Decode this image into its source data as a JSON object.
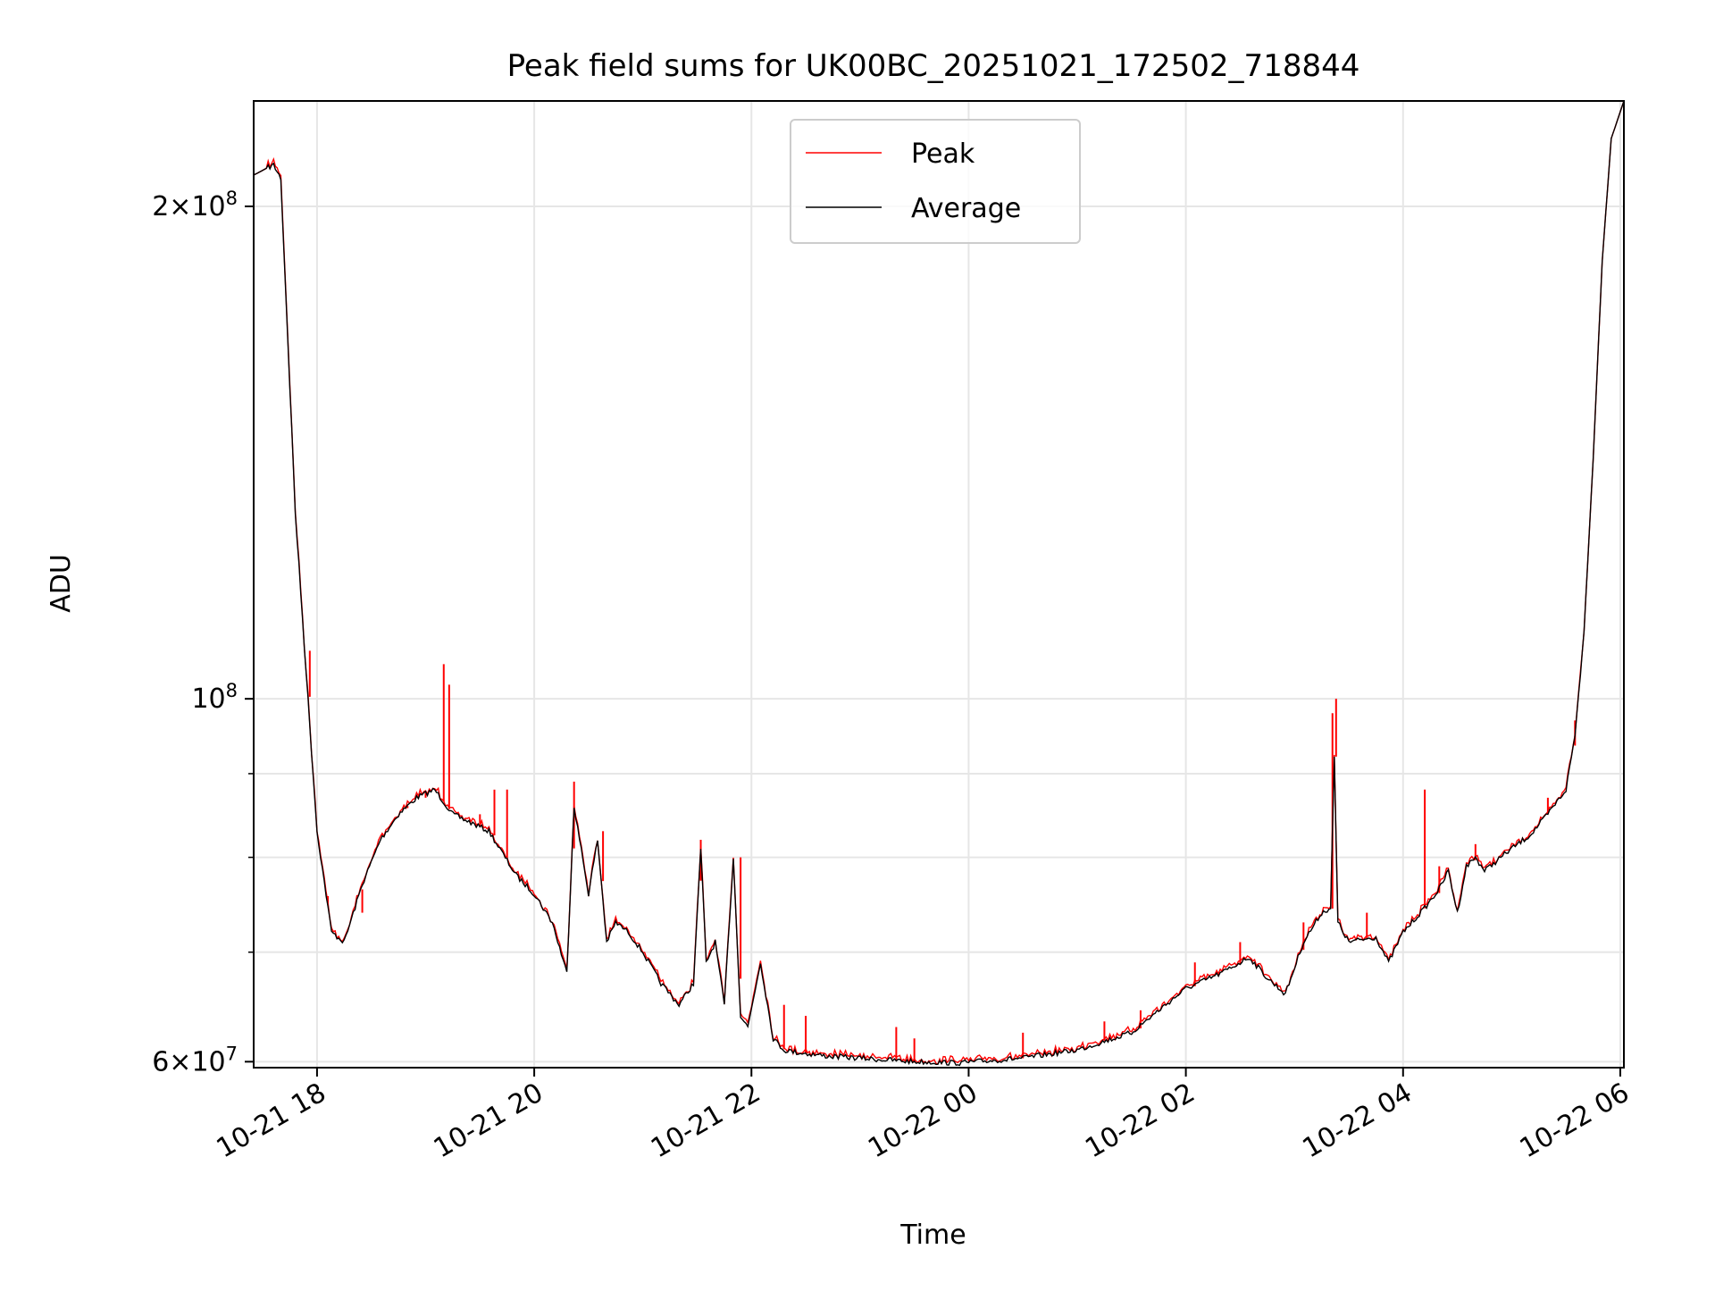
{
  "chart_data": {
    "type": "line",
    "title": "Peak field sums for UK00BC_20251021_172502_718844",
    "xlabel": "Time",
    "ylabel": "ADU",
    "yscale": "log",
    "xlim": [
      "2025-10-21 17:25",
      "2025-10-22 06:02"
    ],
    "ylim": [
      59500000,
      232000000
    ],
    "x_ticks": [
      "10-21 18",
      "10-21 20",
      "10-21 22",
      "10-22 00",
      "10-22 02",
      "10-22 04",
      "10-22 06"
    ],
    "x_tick_values": [
      "2025-10-21 18:00",
      "2025-10-21 20:00",
      "2025-10-21 22:00",
      "2025-10-22 00:00",
      "2025-10-22 02:00",
      "2025-10-22 04:00",
      "2025-10-22 06:00"
    ],
    "y_ticks": [
      {
        "value": 60000000,
        "base": "6×10",
        "exp": "7"
      },
      {
        "value": 100000000,
        "base": "10",
        "exp": "8"
      },
      {
        "value": 200000000,
        "base": "2×10",
        "exp": "8"
      }
    ],
    "y_minor_ticks": [
      70000000,
      80000000,
      90000000
    ],
    "grid": true,
    "legend": {
      "position": "top-center",
      "entries": [
        "Peak",
        "Average"
      ]
    },
    "series": [
      {
        "name": "Average",
        "color": "#000000",
        "x": [
          "2025-10-21 17:25",
          "2025-10-21 17:32",
          "2025-10-21 17:36",
          "2025-10-21 17:40",
          "2025-10-21 17:48",
          "2025-10-21 17:55",
          "2025-10-21 18:00",
          "2025-10-21 18:08",
          "2025-10-21 18:15",
          "2025-10-21 18:25",
          "2025-10-21 18:35",
          "2025-10-21 18:45",
          "2025-10-21 18:55",
          "2025-10-21 19:05",
          "2025-10-21 19:15",
          "2025-10-21 19:25",
          "2025-10-21 19:35",
          "2025-10-21 19:50",
          "2025-10-21 20:00",
          "2025-10-21 20:10",
          "2025-10-21 20:18",
          "2025-10-21 20:22",
          "2025-10-21 20:30",
          "2025-10-21 20:35",
          "2025-10-21 20:40",
          "2025-10-21 20:45",
          "2025-10-21 20:52",
          "2025-10-21 21:00",
          "2025-10-21 21:10",
          "2025-10-21 21:20",
          "2025-10-21 21:28",
          "2025-10-21 21:32",
          "2025-10-21 21:35",
          "2025-10-21 21:40",
          "2025-10-21 21:45",
          "2025-10-21 21:50",
          "2025-10-21 21:54",
          "2025-10-21 21:58",
          "2025-10-21 22:05",
          "2025-10-21 22:12",
          "2025-10-21 22:18",
          "2025-10-21 22:25",
          "2025-10-21 22:40",
          "2025-10-21 23:00",
          "2025-10-21 23:30",
          "2025-10-21 23:55",
          "2025-10-22 00:30",
          "2025-10-22 01:00",
          "2025-10-22 01:30",
          "2025-10-22 01:45",
          "2025-10-22 02:00",
          "2025-10-22 02:20",
          "2025-10-22 02:35",
          "2025-10-22 02:45",
          "2025-10-22 02:55",
          "2025-10-22 03:05",
          "2025-10-22 03:15",
          "2025-10-22 03:20",
          "2025-10-22 03:22",
          "2025-10-22 03:24",
          "2025-10-22 03:30",
          "2025-10-22 03:45",
          "2025-10-22 03:52",
          "2025-10-22 04:00",
          "2025-10-22 04:12",
          "2025-10-22 04:20",
          "2025-10-22 04:25",
          "2025-10-22 04:30",
          "2025-10-22 04:35",
          "2025-10-22 04:40",
          "2025-10-22 04:45",
          "2025-10-22 05:00",
          "2025-10-22 05:10",
          "2025-10-22 05:20",
          "2025-10-22 05:30",
          "2025-10-22 05:35",
          "2025-10-22 05:40",
          "2025-10-22 05:45",
          "2025-10-22 05:50",
          "2025-10-22 05:55",
          "2025-10-22 06:02"
        ],
        "values": [
          209000000,
          211000000,
          212000000,
          208000000,
          130000000,
          100000000,
          83000000,
          72000000,
          71000000,
          77000000,
          82000000,
          85000000,
          87000000,
          88000000,
          85000000,
          84000000,
          83000000,
          78000000,
          76000000,
          73000000,
          68000000,
          86000000,
          76000000,
          82000000,
          71000000,
          73000000,
          72000000,
          70000000,
          67000000,
          65000000,
          67000000,
          81000000,
          69000000,
          71000000,
          65000000,
          80000000,
          64000000,
          63000000,
          69000000,
          62000000,
          61000000,
          60800000,
          60500000,
          60300000,
          60000000,
          59900000,
          60300000,
          61000000,
          62500000,
          64500000,
          66500000,
          68000000,
          69500000,
          67500000,
          66000000,
          71000000,
          74000000,
          74500000,
          92000000,
          73000000,
          71000000,
          71500000,
          69000000,
          72000000,
          74500000,
          76500000,
          78500000,
          74000000,
          79000000,
          80000000,
          78500000,
          81000000,
          82500000,
          85000000,
          88000000,
          95000000,
          110000000,
          140000000,
          185000000,
          220000000,
          232000000
        ]
      },
      {
        "name": "Peak",
        "color": "#ff0000",
        "spikes": [
          {
            "x": "2025-10-21 17:56",
            "value": 107000000
          },
          {
            "x": "2025-10-21 18:06",
            "value": 75000000
          },
          {
            "x": "2025-10-21 18:25",
            "value": 74000000
          },
          {
            "x": "2025-10-21 18:50",
            "value": 86000000
          },
          {
            "x": "2025-10-21 19:00",
            "value": 87000000
          },
          {
            "x": "2025-10-21 19:10",
            "value": 105000000
          },
          {
            "x": "2025-10-21 19:13",
            "value": 102000000
          },
          {
            "x": "2025-10-21 19:30",
            "value": 85000000
          },
          {
            "x": "2025-10-21 19:38",
            "value": 88000000
          },
          {
            "x": "2025-10-21 19:45",
            "value": 88000000
          },
          {
            "x": "2025-10-21 20:22",
            "value": 89000000
          },
          {
            "x": "2025-10-21 20:38",
            "value": 83000000
          },
          {
            "x": "2025-10-21 21:32",
            "value": 82000000
          },
          {
            "x": "2025-10-21 21:54",
            "value": 80000000
          },
          {
            "x": "2025-10-21 22:18",
            "value": 65000000
          },
          {
            "x": "2025-10-21 22:30",
            "value": 64000000
          },
          {
            "x": "2025-10-21 23:20",
            "value": 63000000
          },
          {
            "x": "2025-10-21 23:30",
            "value": 62000000
          },
          {
            "x": "2025-10-22 00:30",
            "value": 62500000
          },
          {
            "x": "2025-10-22 01:15",
            "value": 63500000
          },
          {
            "x": "2025-10-22 01:35",
            "value": 64500000
          },
          {
            "x": "2025-10-22 02:05",
            "value": 69000000
          },
          {
            "x": "2025-10-22 02:30",
            "value": 71000000
          },
          {
            "x": "2025-10-22 03:05",
            "value": 73000000
          },
          {
            "x": "2025-10-22 03:21",
            "value": 98000000
          },
          {
            "x": "2025-10-22 03:23",
            "value": 100000000
          },
          {
            "x": "2025-10-22 03:40",
            "value": 74000000
          },
          {
            "x": "2025-10-22 04:12",
            "value": 88000000
          },
          {
            "x": "2025-10-22 04:20",
            "value": 79000000
          },
          {
            "x": "2025-10-22 04:40",
            "value": 81500000
          },
          {
            "x": "2025-10-22 05:20",
            "value": 87000000
          },
          {
            "x": "2025-10-22 05:35",
            "value": 97000000
          }
        ]
      }
    ]
  }
}
